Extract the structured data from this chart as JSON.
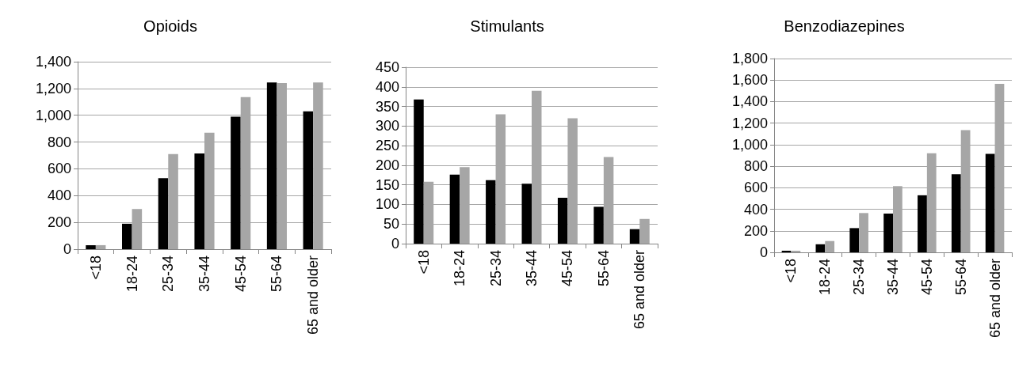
{
  "chart_data": [
    {
      "type": "bar",
      "title": "Opioids",
      "categories": [
        "<18",
        "18-24",
        "25-34",
        "35-44",
        "45-54",
        "55-64",
        "65 and older"
      ],
      "series": [
        {
          "color": "#000000",
          "values": [
            30,
            190,
            530,
            715,
            990,
            1245,
            1030
          ]
        },
        {
          "color": "#a6a6a6",
          "values": [
            30,
            300,
            710,
            870,
            1135,
            1240,
            1245
          ]
        }
      ],
      "ylim": [
        0,
        1400
      ],
      "yticks": [
        0,
        {
          "value": 200,
          "label": "200"
        },
        400,
        600,
        800,
        {
          "value": 1000,
          "label": "1,000"
        },
        {
          "value": 1200,
          "label": "1,200"
        },
        {
          "value": 1400,
          "label": "1,400"
        }
      ],
      "grid": "y"
    },
    {
      "type": "bar",
      "title": "Stimulants",
      "categories": [
        "<18",
        "18-24",
        "25-34",
        "35-44",
        "45-54",
        "55-64",
        "65 and older"
      ],
      "series": [
        {
          "color": "#000000",
          "values": [
            368,
            176,
            162,
            153,
            117,
            94,
            37
          ]
        },
        {
          "color": "#a6a6a6",
          "values": [
            158,
            195,
            330,
            390,
            320,
            221,
            63
          ]
        }
      ],
      "ylim": [
        0,
        450
      ],
      "yticks": [
        0,
        50,
        100,
        150,
        200,
        250,
        300,
        350,
        400,
        450
      ],
      "grid": "y"
    },
    {
      "type": "bar",
      "title": "Benzodiazepines",
      "categories": [
        "<18",
        "18-24",
        "25-34",
        "35-44",
        "45-54",
        "55-64",
        "65 and older"
      ],
      "series": [
        {
          "color": "#000000",
          "values": [
            15,
            75,
            225,
            360,
            530,
            725,
            915
          ]
        },
        {
          "color": "#a6a6a6",
          "values": [
            15,
            105,
            365,
            615,
            920,
            1135,
            1565
          ]
        }
      ],
      "ylim": [
        0,
        1800
      ],
      "yticks": [
        0,
        200,
        400,
        600,
        800,
        {
          "value": 1000,
          "label": "1,000"
        },
        {
          "value": 1200,
          "label": "1,200"
        },
        {
          "value": 1400,
          "label": "1,400"
        },
        {
          "value": 1600,
          "label": "1,600"
        },
        {
          "value": 1800,
          "label": "1,800"
        }
      ],
      "grid": "y"
    }
  ]
}
